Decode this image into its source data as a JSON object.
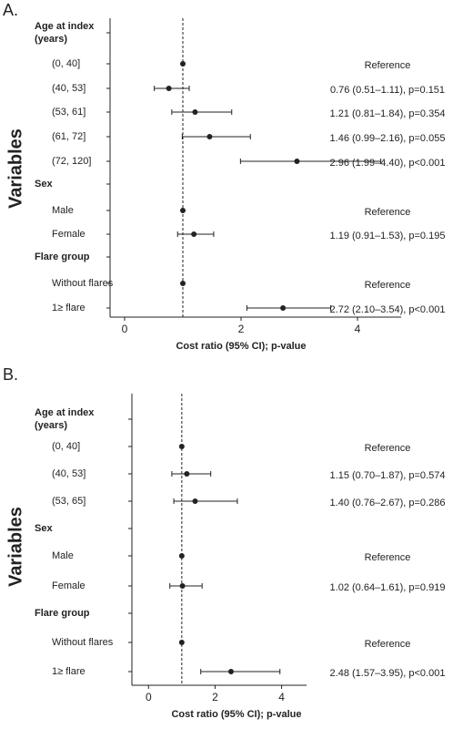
{
  "chart_data": [
    {
      "type": "forest",
      "title": "A.",
      "xlabel": "Cost ratio (95% CI); p-value",
      "ylabel": "Variables",
      "categories": [
        "Age at index (years)",
        "(0, 40]",
        "(40, 53]",
        "(53, 61]",
        "(61, 72]",
        "(72, 120]",
        "Sex",
        "Male",
        "Female",
        "Flare group",
        "Without flares",
        "1≥ flare"
      ],
      "values": [
        null,
        1,
        0.76,
        1.21,
        1.46,
        2.96,
        null,
        1,
        1.19,
        null,
        1,
        2.72
      ],
      "lower": [
        null,
        null,
        0.51,
        0.81,
        0.99,
        1.99,
        null,
        null,
        0.91,
        null,
        null,
        2.1
      ],
      "upper": [
        null,
        null,
        1.11,
        1.84,
        2.16,
        4.4,
        null,
        null,
        1.53,
        null,
        null,
        3.54
      ],
      "value_labels": [
        null,
        "Reference",
        "0.76 (0.51–1.11), p=0.151",
        "1.21 (0.81–1.84), p=0.354",
        "1.46 (0.99–2.16), p=0.055",
        "2.96 (1.99–4.40), p<0.001",
        null,
        "Reference",
        "1.19 (0.91–1.53), p=0.195",
        null,
        "Reference",
        "2.72 (2.10–3.54), p<0.001"
      ],
      "ref_line": 1,
      "xlim": [
        -0.25,
        4.75
      ],
      "xticks": [
        0,
        2,
        4
      ],
      "color": "#222222"
    },
    {
      "type": "forest",
      "title": "B.",
      "xlabel": "Cost ratio (95% CI); p-value",
      "ylabel": "Variables",
      "categories": [
        "Age at index (years)",
        "(0, 40]",
        "(40, 53]",
        "(53, 65]",
        "Sex",
        "Male",
        "Female",
        "Flare group",
        "Without flares",
        "1≥ flare"
      ],
      "values": [
        null,
        1,
        1.15,
        1.4,
        null,
        1,
        1.02,
        null,
        1,
        2.48
      ],
      "lower": [
        null,
        null,
        0.7,
        0.76,
        null,
        null,
        0.64,
        null,
        null,
        1.57
      ],
      "upper": [
        null,
        null,
        1.87,
        2.67,
        null,
        null,
        1.61,
        null,
        null,
        3.95
      ],
      "value_labels": [
        null,
        "Reference",
        "1.15 (0.70–1.87), p=0.574",
        "1.40 (0.76–2.67), p=0.286",
        null,
        "Reference",
        "1.02 (0.64–1.61), p=0.919",
        null,
        "Reference",
        "2.48 (1.57–3.95), p<0.001"
      ],
      "ref_line": 1,
      "xlim": [
        -0.5,
        4.75
      ],
      "xticks": [
        0,
        2,
        4
      ],
      "color": "#222222"
    }
  ]
}
